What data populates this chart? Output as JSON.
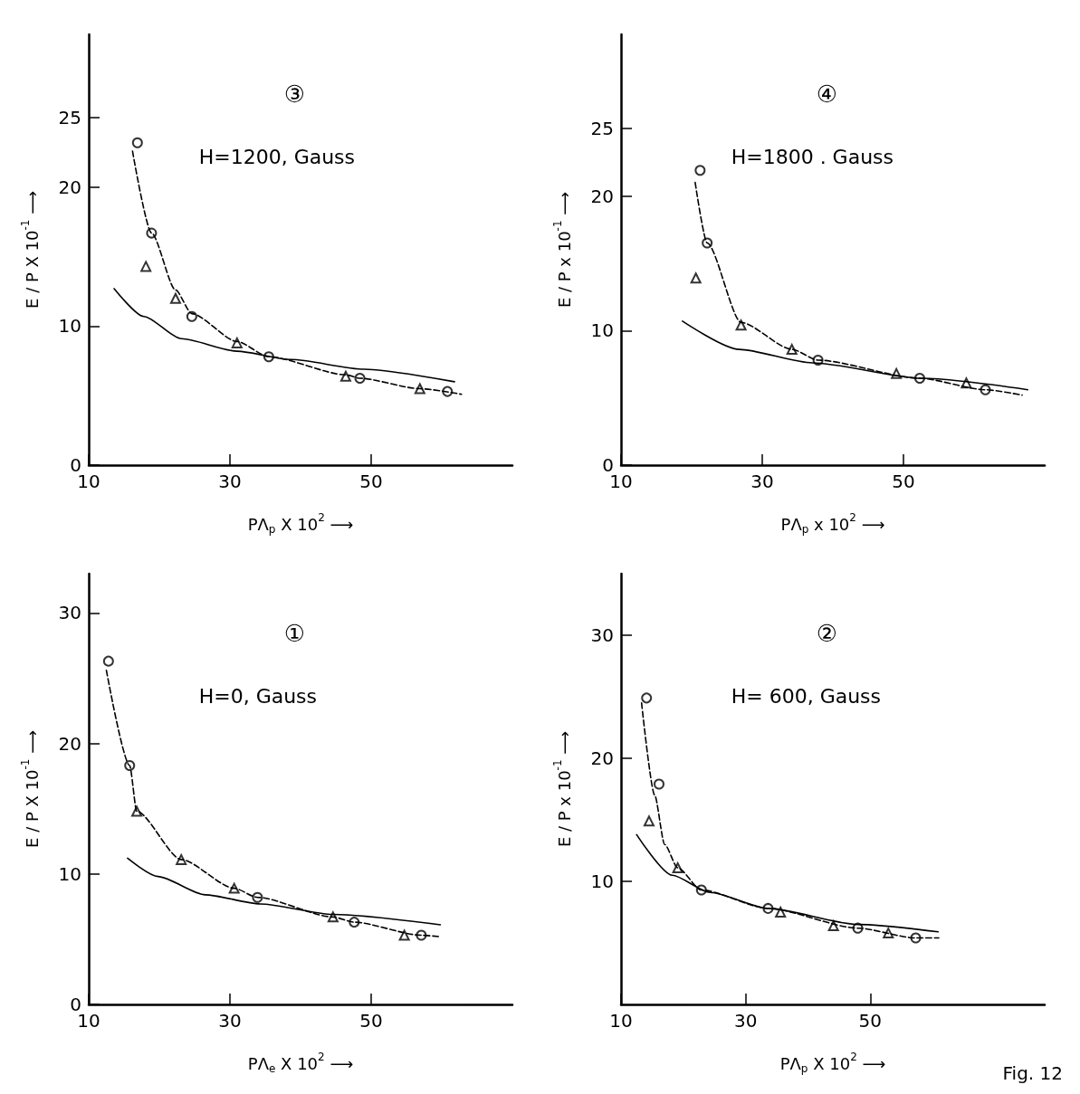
{
  "chart_data": [
    {
      "type": "scatter",
      "xlabel": "PΛ$_{p}$ X 10$^{2}$ ⟶",
      "ylabel": "E / P X 10$^{-1}$ ⟶",
      "annotations": [
        "③",
        "H=1200, Gauss"
      ],
      "xlim": [
        10,
        70
      ],
      "ylim": [
        0,
        31
      ],
      "xticks": [
        10,
        30,
        50
      ],
      "yticks": [
        0,
        10,
        20,
        25
      ],
      "grid": false,
      "series": [
        {
          "type": "line",
          "line_style": "solid",
          "marker": "none",
          "color": "#000000",
          "x": [
            13.6,
            17.8,
            23.1,
            31,
            38.6,
            49,
            61.8
          ],
          "values": [
            12.7,
            10.7,
            9.1,
            8.2,
            7.6,
            6.9,
            6.0
          ]
        },
        {
          "type": "line",
          "line_style": "dashed",
          "marker": "none",
          "color": "#000000",
          "x": [
            16.2,
            18.9,
            22.3,
            24.6,
            31,
            35.5,
            46.4,
            48.4,
            56.9,
            62.8
          ],
          "values": [
            22.6,
            16.7,
            12.6,
            10.9,
            8.9,
            7.8,
            6.5,
            6.25,
            5.5,
            5.1
          ]
        },
        {
          "marker": "circle",
          "color": "#000000",
          "x": [
            16.9,
            18.9,
            24.6,
            35.5,
            48.4,
            60.8
          ],
          "values": [
            23.2,
            16.7,
            10.7,
            7.8,
            6.25,
            5.3
          ]
        },
        {
          "marker": "triangle",
          "color": "#000000",
          "x": [
            18.1,
            22.3,
            31,
            46.4,
            56.9
          ],
          "values": [
            14.3,
            12.0,
            8.8,
            6.4,
            5.5
          ]
        }
      ]
    },
    {
      "type": "scatter",
      "xlabel": "PΛ$_{p}$ x 10$^{2}$ ⟶",
      "ylabel": "E / P x 10$^{-1}$ ⟶",
      "annotations": [
        "④",
        "H=1800 . Gauss"
      ],
      "xlim": [
        10,
        70
      ],
      "ylim": [
        0,
        32
      ],
      "xticks": [
        10,
        30,
        50
      ],
      "yticks": [
        0,
        10,
        20,
        25
      ],
      "grid": false,
      "series": [
        {
          "type": "line",
          "line_style": "solid",
          "marker": "none",
          "color": "#000000",
          "x": [
            18.7,
            26.7,
            37.1,
            52.6,
            67.6
          ],
          "values": [
            10.7,
            8.6,
            7.6,
            6.45,
            5.6
          ]
        },
        {
          "type": "line",
          "line_style": "dashed",
          "marker": "none",
          "color": "#000000",
          "x": [
            20.5,
            22.2,
            27,
            34.2,
            37.9,
            52.3,
            61.6,
            66.8
          ],
          "values": [
            21,
            16.5,
            10.6,
            8.6,
            7.8,
            6.45,
            5.6,
            5.2
          ]
        },
        {
          "marker": "circle",
          "color": "#000000",
          "x": [
            21.2,
            22.2,
            37.9,
            52.3,
            61.6
          ],
          "values": [
            21.9,
            16.5,
            7.8,
            6.45,
            5.6
          ]
        },
        {
          "marker": "triangle",
          "color": "#000000",
          "x": [
            20.6,
            27,
            34.2,
            49,
            58.9
          ],
          "values": [
            13.9,
            10.4,
            8.6,
            6.8,
            6.1
          ]
        }
      ]
    },
    {
      "type": "scatter",
      "xlabel": "PΛ$_{e}$ X 10$^{2}$ ⟶",
      "ylabel": "E / P X 10$^{-1}$ ⟶",
      "annotations": [
        "①",
        "H=0, Gauss"
      ],
      "xlim": [
        10,
        70
      ],
      "ylim": [
        0,
        33
      ],
      "xticks": [
        10,
        30,
        50
      ],
      "yticks": [
        0,
        10,
        20,
        30
      ],
      "grid": false,
      "series": [
        {
          "type": "line",
          "line_style": "solid",
          "marker": "none",
          "color": "#000000",
          "x": [
            15.5,
            19.8,
            26.5,
            34.3,
            44.6,
            59.8
          ],
          "values": [
            11.2,
            9.8,
            8.4,
            7.7,
            6.9,
            6.1
          ]
        },
        {
          "type": "line",
          "line_style": "dashed",
          "marker": "none",
          "color": "#000000",
          "x": [
            12.5,
            15.8,
            16.8,
            23.1,
            30.6,
            33.9,
            44.6,
            47.6,
            57.1,
            59.6
          ],
          "values": [
            25.6,
            18.3,
            14.8,
            11.1,
            8.9,
            8.2,
            6.7,
            6.3,
            5.3,
            5.2
          ]
        },
        {
          "marker": "circle",
          "color": "#000000",
          "x": [
            12.8,
            15.8,
            33.9,
            47.6,
            57.1
          ],
          "values": [
            26.3,
            18.3,
            8.2,
            6.3,
            5.3
          ]
        },
        {
          "marker": "triangle",
          "color": "#000000",
          "x": [
            16.8,
            23.1,
            30.6,
            44.6,
            54.7
          ],
          "values": [
            14.8,
            11.1,
            8.9,
            6.7,
            5.3
          ]
        }
      ]
    },
    {
      "type": "scatter",
      "xlabel": "PΛ$_{p}$ X 10$^{2}$ ⟶",
      "ylabel": "E / P x 10$^{-1}$ ⟶",
      "annotations": [
        "②",
        "H= 600, Gauss",
        "Fig. 12"
      ],
      "xlim": [
        10,
        78
      ],
      "ylim": [
        0,
        35
      ],
      "xticks": [
        10,
        30,
        50
      ],
      "yticks": [
        10,
        20,
        30
      ],
      "grid": false,
      "series": [
        {
          "type": "line",
          "line_style": "solid",
          "marker": "none",
          "color": "#000000",
          "x": [
            12.5,
            18.2,
            24.3,
            33.6,
            48,
            60.9
          ],
          "values": [
            13.8,
            10.5,
            9.1,
            7.8,
            6.5,
            5.9
          ]
        },
        {
          "type": "line",
          "line_style": "dashed",
          "marker": "none",
          "color": "#000000",
          "x": [
            13.3,
            15.4,
            17,
            19.1,
            22.9,
            33.6,
            48,
            57.3,
            61
          ],
          "values": [
            24.5,
            17,
            13,
            11.1,
            9.3,
            7.8,
            6.2,
            5.4,
            5.4
          ]
        },
        {
          "marker": "circle",
          "color": "#000000",
          "x": [
            14.1,
            16.1,
            22.9,
            33.6,
            48,
            57.3
          ],
          "values": [
            24.9,
            17.9,
            9.3,
            7.8,
            6.2,
            5.4
          ]
        },
        {
          "marker": "triangle",
          "color": "#000000",
          "x": [
            14.5,
            19.1,
            35.6,
            44.1,
            52.9
          ],
          "values": [
            14.9,
            11.1,
            7.5,
            6.4,
            5.8
          ]
        }
      ]
    }
  ]
}
